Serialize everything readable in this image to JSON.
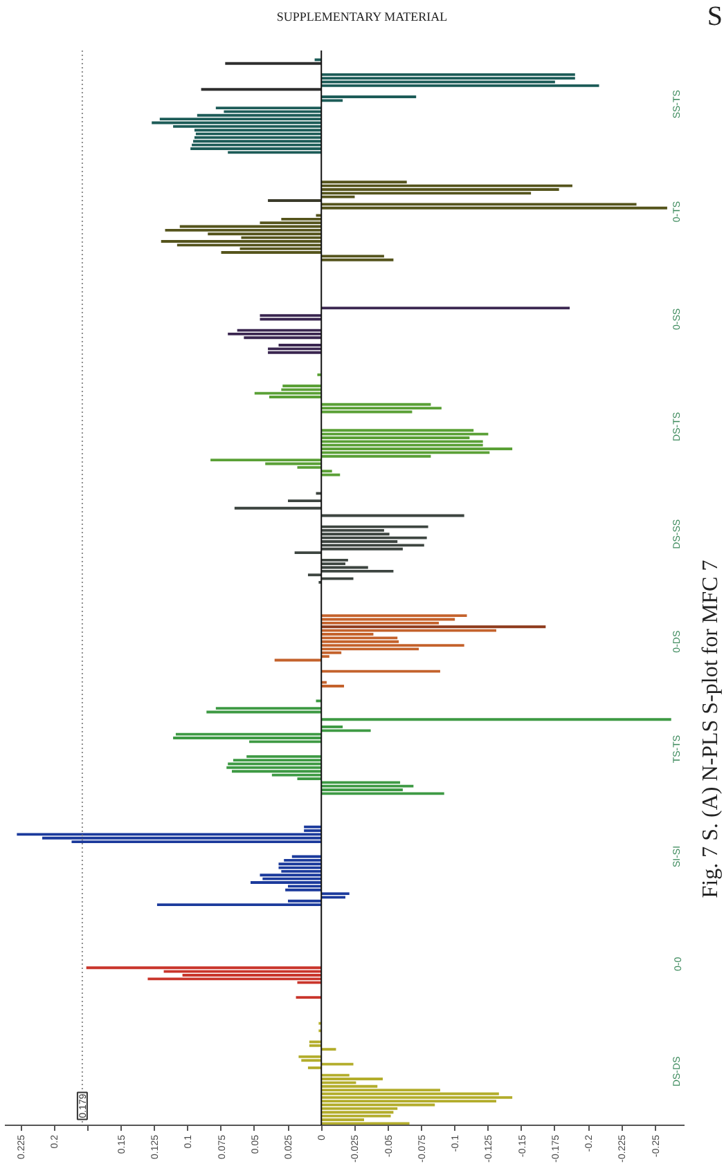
{
  "chart_data": {
    "type": "bar",
    "orientation": "horizontal",
    "title": "Fig. 7 S. (A) N-PLS S-plot for MFC 7",
    "annotations": [
      "SUPPLEMENTARY MATERIAL",
      "S"
    ],
    "categories": [
      null,
      null,
      null,
      null,
      null,
      null,
      null,
      null,
      null,
      null,
      null,
      null,
      null,
      null,
      "SS-TS",
      null,
      null,
      null,
      null,
      null,
      null,
      null,
      null,
      null,
      null,
      null,
      null,
      null,
      null,
      null,
      null,
      null,
      null,
      null,
      null,
      null,
      null,
      null,
      null,
      null,
      null,
      null,
      null,
      "0-TS",
      null,
      null,
      null,
      null,
      null,
      null,
      null,
      null,
      null,
      null,
      null,
      null,
      null,
      null,
      null,
      null,
      null,
      null,
      null,
      null,
      null,
      null,
      null,
      null,
      null,
      null,
      null,
      null,
      "0-SS",
      null,
      null,
      null,
      null,
      null,
      null,
      null,
      null,
      null,
      null,
      null,
      null,
      null,
      null,
      null,
      null,
      null,
      null,
      null,
      null,
      null,
      null,
      null,
      null,
      null,
      null,
      null,
      null,
      "DS-TS",
      null,
      null,
      null,
      null,
      null,
      null,
      null,
      null,
      null,
      null,
      null,
      null,
      null,
      null,
      null,
      null,
      null,
      null,
      null,
      null,
      null,
      null,
      null,
      null,
      null,
      null,
      null,
      null,
      "DS-SS",
      null,
      null,
      null,
      null,
      null,
      null,
      null,
      null,
      null,
      null,
      null,
      null,
      null,
      null,
      null,
      null,
      null,
      null,
      null,
      null,
      null,
      null,
      null,
      null,
      null,
      null,
      null,
      null,
      "0-DS",
      null,
      null,
      null,
      null,
      null,
      null,
      null,
      null,
      null,
      null,
      null,
      null,
      null,
      null,
      null,
      null,
      null,
      null,
      null,
      null,
      null,
      null,
      null,
      null,
      null,
      null,
      null,
      null,
      "TS-TS",
      null,
      null,
      null,
      null,
      null,
      null,
      null,
      null,
      null,
      null,
      null,
      null,
      null,
      null,
      null,
      null,
      null,
      null,
      null,
      null,
      null,
      null,
      null,
      null,
      null,
      null,
      null,
      null,
      "SI-SI",
      null,
      null,
      null,
      null,
      null,
      null,
      null,
      null,
      null,
      null,
      null,
      null,
      null,
      null,
      null,
      null,
      null,
      null,
      null,
      null,
      null,
      null,
      null,
      null,
      null,
      null,
      null,
      null,
      "0-0",
      null,
      null,
      null,
      null,
      null,
      null,
      null,
      null,
      null,
      null,
      null,
      null,
      null,
      null,
      null,
      null,
      null,
      null,
      null,
      null,
      null,
      null,
      null,
      null,
      null,
      null,
      null,
      null,
      "DS-DS",
      null,
      null,
      null,
      null,
      null,
      null,
      null,
      null,
      null,
      null,
      null,
      null,
      null,
      null
    ],
    "values": [
      null,
      null,
      0.005,
      0.072,
      null,
      null,
      -0.19,
      -0.19,
      -0.175,
      -0.208,
      0.09,
      null,
      -0.071,
      -0.016,
      null,
      0.079,
      0.073,
      0.093,
      0.121,
      0.127,
      0.111,
      0.095,
      0.094,
      0.095,
      0.096,
      0.097,
      0.098,
      0.07,
      null,
      null,
      null,
      null,
      null,
      null,
      null,
      -0.064,
      -0.188,
      -0.178,
      -0.157,
      -0.025,
      0.04,
      -0.236,
      -0.259,
      null,
      0.004,
      0.03,
      0.046,
      0.106,
      0.117,
      0.085,
      0.06,
      0.12,
      0.108,
      0.061,
      0.075,
      -0.047,
      -0.054,
      null,
      null,
      null,
      null,
      null,
      null,
      null,
      null,
      null,
      null,
      null,
      null,
      -0.186,
      null,
      0.046,
      0.046,
      null,
      null,
      0.063,
      0.07,
      0.058,
      null,
      0.032,
      0.04,
      0.04,
      null,
      null,
      null,
      null,
      null,
      0.003,
      null,
      null,
      0.029,
      0.03,
      0.05,
      0.039,
      null,
      -0.082,
      -0.09,
      -0.068,
      null,
      null,
      null,
      null,
      -0.114,
      -0.125,
      -0.111,
      -0.121,
      -0.121,
      -0.143,
      -0.126,
      -0.082,
      0.083,
      0.042,
      0.018,
      -0.008,
      -0.014,
      null,
      null,
      null,
      null,
      0.004,
      null,
      0.025,
      null,
      0.065,
      null,
      -0.107,
      null,
      null,
      -0.08,
      -0.047,
      -0.051,
      -0.079,
      -0.057,
      -0.077,
      -0.061,
      0.02,
      null,
      -0.02,
      -0.018,
      -0.035,
      -0.054,
      0.01,
      -0.024,
      0.002,
      null,
      null,
      null,
      null,
      null,
      null,
      null,
      null,
      -0.109,
      -0.1,
      -0.088,
      -0.168,
      -0.131,
      -0.039,
      -0.057,
      -0.058,
      -0.107,
      -0.073,
      -0.015,
      -0.006,
      0.035,
      null,
      null,
      -0.089,
      null,
      null,
      -0.004,
      -0.017,
      null,
      null,
      null,
      0.004,
      null,
      0.079,
      0.086,
      null,
      -0.262,
      null,
      -0.016,
      -0.037,
      0.109,
      0.111,
      0.054,
      null,
      null,
      null,
      0.056,
      0.066,
      0.07,
      0.071,
      0.067,
      0.037,
      0.018,
      -0.059,
      -0.069,
      -0.061,
      -0.092,
      null,
      null,
      null,
      null,
      null,
      null,
      null,
      null,
      0.013,
      0.013,
      0.228,
      0.209,
      0.187,
      null,
      null,
      null,
      0.022,
      0.028,
      0.032,
      0.032,
      0.03,
      0.046,
      0.044,
      0.053,
      0.025,
      0.027,
      -0.021,
      -0.018,
      0.025,
      0.123,
      null,
      null,
      null,
      null,
      null,
      null,
      null,
      null,
      null,
      null,
      null,
      null,
      null,
      null,
      null,
      null,
      0.176,
      0.118,
      0.104,
      0.13,
      0.018,
      null,
      null,
      null,
      0.019,
      null,
      null,
      null,
      null,
      null,
      null,
      0.002,
      null,
      0.002,
      null,
      null,
      0.009,
      0.009,
      -0.011,
      null,
      0.017,
      0.015,
      -0.024,
      0.01,
      null,
      -0.021,
      -0.046,
      -0.026,
      -0.042,
      -0.089,
      -0.133,
      -0.143,
      -0.131,
      -0.085,
      -0.057,
      -0.054,
      -0.052,
      -0.032,
      -0.066
    ],
    "colors": [
      "#1d5c58",
      "#1d5c58",
      "#1d5c58",
      "#2e2e2e",
      "#1d5c58",
      "#1d5c58",
      "#1d5c58",
      "#1d5c58",
      "#1d5c58",
      "#1d5c58",
      "#2e2e2e",
      "#1d5c58",
      "#1d5c58",
      "#1d5c58",
      "#1d5c58",
      "#1d5c58",
      "#1d5c58",
      "#1d5c58",
      "#1d5c58",
      "#1d5c58",
      "#1d5c58",
      "#1d5c58",
      "#1d5c58",
      "#1d5c58",
      "#1d5c58",
      "#1d5c58",
      "#1d5c58",
      "#1d5c58",
      "#1d5c58",
      "#55541c",
      "#55541c",
      "#55541c",
      "#55541c",
      "#55541c",
      "#55541c",
      "#55541c",
      "#55541c",
      "#55541c",
      "#55541c",
      "#55541c",
      "#3a3a2a",
      "#55541c",
      "#55541c",
      "#55541c",
      "#55541c",
      "#55541c",
      "#55541c",
      "#55541c",
      "#55541c",
      "#55541c",
      "#55541c",
      "#55541c",
      "#55541c",
      "#55541c",
      "#55541c",
      "#55541c",
      "#55541c",
      "#55541c",
      "#3a2650",
      "#3a2650",
      "#3a2650",
      "#3a2650",
      "#3a2650",
      "#3a2650",
      "#3a2650",
      "#3a2650",
      "#3a2650",
      "#3a2650",
      "#3a2650",
      "#3a2650",
      "#3a2650",
      "#3a2650",
      "#3a2650",
      "#3a2650",
      "#3a2650",
      "#3a2650",
      "#3a2650",
      "#3a2650",
      "#3a2650",
      "#3a2650",
      "#3a2650",
      "#3a2650",
      "#3a2650",
      "#3a2650",
      "#3a2650",
      "#3a2650",
      "#3a2650",
      "#5aa036",
      "#5aa036",
      "#5aa036",
      "#5aa036",
      "#5aa036",
      "#5aa036",
      "#5aa036",
      "#5aa036",
      "#5aa036",
      "#5aa036",
      "#5aa036",
      "#5aa036",
      "#5aa036",
      "#5aa036",
      "#5aa036",
      "#5aa036",
      "#5aa036",
      "#5aa036",
      "#5aa036",
      "#5aa036",
      "#5aa036",
      "#5aa036",
      "#5aa036",
      "#5aa036",
      "#5aa036",
      "#5aa036",
      "#5aa036",
      "#5aa036",
      "#5aa036",
      "#3d4540",
      "#3d4540",
      "#3d4540",
      "#3d4540",
      "#3d4540",
      "#3d4540",
      "#3d4540",
      "#3d4540",
      "#3d4540",
      "#3d4540",
      "#3d4540",
      "#3d4540",
      "#3d4540",
      "#3d4540",
      "#3d4540",
      "#3d4540",
      "#3d4540",
      "#3d4540",
      "#3d4540",
      "#3d4540",
      "#3d4540",
      "#3d4540",
      "#3d4540",
      "#3d4540",
      "#3d4540",
      "#3d4540",
      "#3d4540",
      "#3d4540",
      "#3d4540",
      "#c4622c",
      "#c4622c",
      "#c4622c",
      "#c4622c",
      "#c4622c",
      "#c4622c",
      "#c4622c",
      "#c4622c",
      "#c4622c",
      "#c4622c",
      "#8e3b1c",
      "#c4622c",
      "#c4622c",
      "#c4622c",
      "#c4622c",
      "#c4622c",
      "#c4622c",
      "#c4622c",
      "#c4622c",
      "#c4622c",
      "#c4622c",
      "#c4622c",
      "#c4622c",
      "#c4622c",
      "#c4622c",
      "#c4622c",
      "#c4622c",
      "#c4622c",
      "#c4622c",
      "#3e9a44",
      "#3e9a44",
      "#3e9a44",
      "#3e9a44",
      "#3e9a44",
      "#3e9a44",
      "#3e9a44",
      "#3e9a44",
      "#3e9a44",
      "#3e9a44",
      "#3e9a44",
      "#3e9a44",
      "#3e9a44",
      "#3e9a44",
      "#3e9a44",
      "#3e9a44",
      "#3e9a44",
      "#3e9a44",
      "#3e9a44",
      "#3e9a44",
      "#3e9a44",
      "#3e9a44",
      "#3e9a44",
      "#3e9a44",
      "#3e9a44",
      "#3e9a44",
      "#3e9a44",
      "#3e9a44",
      "#3e9a44",
      "#1b3a9c",
      "#1b3a9c",
      "#1b3a9c",
      "#1b3a9c",
      "#1b3a9c",
      "#1b3a9c",
      "#1b3a9c",
      "#1b3a9c",
      "#1b3a9c",
      "#1b3a9c",
      "#1b3a9c",
      "#1b3a9c",
      "#1b3a9c",
      "#1b3a9c",
      "#1b3a9c",
      "#1b3a9c",
      "#1b3a9c",
      "#1b3a9c",
      "#1b3a9c",
      "#1b3a9c",
      "#1b3a9c",
      "#1b3a9c",
      "#1b3a9c",
      "#1b3a9c",
      "#1b3a9c",
      "#1b3a9c",
      "#1b3a9c",
      "#1b3a9c",
      "#1b3a9c",
      "#c9352b",
      "#c9352b",
      "#c9352b",
      "#c9352b",
      "#c9352b",
      "#c9352b",
      "#c9352b",
      "#c9352b",
      "#c9352b",
      "#c9352b",
      "#c9352b",
      "#c9352b",
      "#c9352b",
      "#c9352b",
      "#c9352b",
      "#c9352b",
      "#c9352b",
      "#c9352b",
      "#c9352b",
      "#c9352b",
      "#c9352b",
      "#c9352b",
      "#c9352b",
      "#c9352b",
      "#c9352b",
      "#c9352b",
      "#c9352b",
      "#c9352b",
      "#c9352b",
      "#b3ad2c",
      "#b3ad2c",
      "#b3ad2c",
      "#b3ad2c",
      "#b3ad2c",
      "#b3ad2c",
      "#b3ad2c",
      "#b3ad2c",
      "#b3ad2c",
      "#b3ad2c",
      "#b3ad2c",
      "#b3ad2c",
      "#b3ad2c",
      "#b3ad2c",
      "#b3ad2c",
      "#b3ad2c",
      "#b3ad2c",
      "#b3ad2c",
      "#b3ad2c",
      "#b3ad2c",
      "#b3ad2c",
      "#b3ad2c",
      "#b3ad2c",
      "#b3ad2c",
      "#b3ad2c",
      "#b3ad2c",
      "#b3ad2c",
      "#b3ad2c",
      "#b3ad2c"
    ],
    "xlim": [
      0.237,
      -0.272
    ],
    "xticks": [
      0.225,
      0.2,
      {
        "value": 0.175,
        "label": null
      },
      0.15,
      0.125,
      0.1,
      0.075,
      0.05,
      0.025,
      0,
      -0.025,
      -0.05,
      -0.075,
      -0.1,
      -0.125,
      -0.15,
      -0.175,
      -0.2,
      -0.225,
      -0.25
    ],
    "ref_lines": [
      {
        "axis": "x",
        "value": 0.179,
        "label": "0.179",
        "line_style": "dotted",
        "color": "#8c8c8c"
      }
    ]
  }
}
